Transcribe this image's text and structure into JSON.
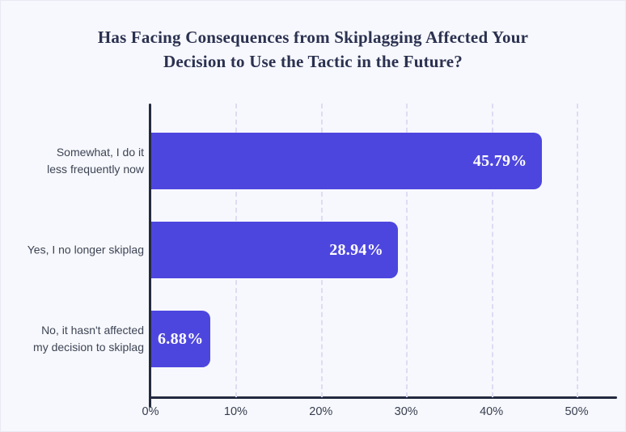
{
  "title_lines": [
    "Has Facing Consequences from Skiplagging Affected Your",
    "Decision to Use the Tactic in the Future?"
  ],
  "chart_data": {
    "type": "bar",
    "orientation": "horizontal",
    "title": "Has Facing Consequences from Skiplagging Affected Your Decision to Use the Tactic in the Future?",
    "categories": [
      "Somewhat, I do it less frequently now",
      "Yes, I no longer skiplag",
      "No, it hasn't affected my decision to skiplag"
    ],
    "values": [
      45.79,
      28.94,
      6.88
    ],
    "bars": [
      {
        "label_lines": [
          "Somewhat, I do it",
          "less frequently now"
        ],
        "value": 45.79,
        "value_label": "45.79%"
      },
      {
        "label_lines": [
          "Yes, I no longer skiplag"
        ],
        "value": 28.94,
        "value_label": "28.94%"
      },
      {
        "label_lines": [
          "No, it hasn't affected",
          "my decision to skiplag"
        ],
        "value": 6.88,
        "value_label": "6.88%"
      }
    ],
    "xlabel": "",
    "ylabel": "",
    "x_ticks": [
      "0%",
      "10%",
      "20%",
      "30%",
      "40%",
      "50%"
    ],
    "x_tick_values": [
      0,
      10,
      20,
      30,
      40,
      50
    ],
    "xlim": [
      0,
      55
    ],
    "grid": "dashed-vertical",
    "legend": "none",
    "colors": {
      "bar": "#4d46de",
      "background": "#f7f8fd",
      "axis": "#232a40",
      "gridline": "#dedcf3",
      "title": "#2b3150",
      "category_label": "#3d4454",
      "tick_label": "#363d4e",
      "value_label": "#ffffff"
    }
  }
}
